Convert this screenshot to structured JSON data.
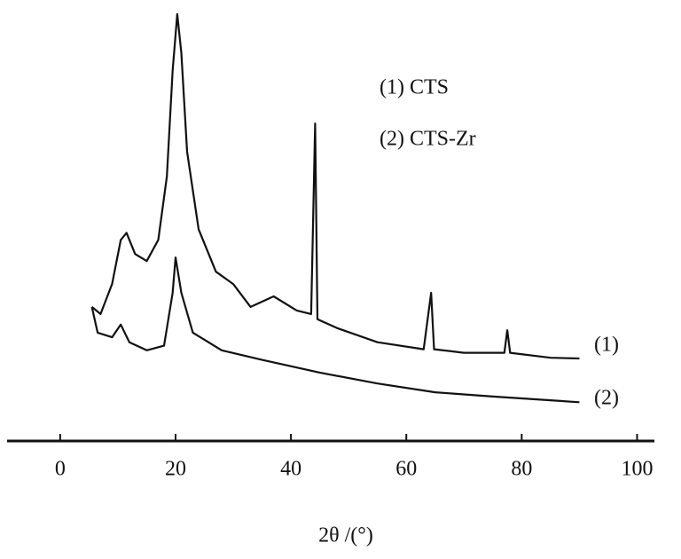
{
  "chart_data": {
    "type": "line",
    "xlabel": "2θ /(°)",
    "annotations": [
      "(1) CTS",
      "(2) CTS-Zr",
      "(1)",
      "(2)"
    ],
    "xlim": [
      -9.2,
      103
    ],
    "xticks": [
      0,
      20,
      40,
      60,
      80,
      100
    ],
    "ylim": [
      0,
      125
    ],
    "series": [
      {
        "name": "(1)",
        "color": "#111111",
        "x": [
          5.5,
          7,
          9,
          10.5,
          11.5,
          13,
          15,
          17,
          18.5,
          19.5,
          20.3,
          21,
          22,
          24,
          27,
          30,
          33,
          37,
          41,
          43.5,
          44.2,
          44.6,
          48,
          55,
          63,
          64.3,
          64.8,
          70,
          77,
          77.5,
          78,
          85,
          90
        ],
        "values": [
          38,
          36,
          44.5,
          57,
          59,
          53,
          51,
          57,
          75,
          105,
          121,
          110,
          82,
          60,
          48,
          44.5,
          38,
          41,
          37,
          36,
          90,
          34.5,
          32,
          28,
          26,
          42,
          26,
          25,
          25,
          31.4,
          25,
          23.6,
          23.4
        ]
      },
      {
        "name": "(2)",
        "color": "#111111",
        "x": [
          5.5,
          6.5,
          9,
          10.5,
          12,
          15,
          18,
          19.5,
          20,
          21,
          23,
          28,
          35,
          45,
          55,
          65,
          75,
          90
        ],
        "values": [
          38,
          30.7,
          29.4,
          33,
          28,
          25.7,
          27,
          42,
          52,
          42,
          30.7,
          25.7,
          23,
          19.4,
          16.3,
          13.8,
          12.6,
          11
        ]
      }
    ]
  }
}
